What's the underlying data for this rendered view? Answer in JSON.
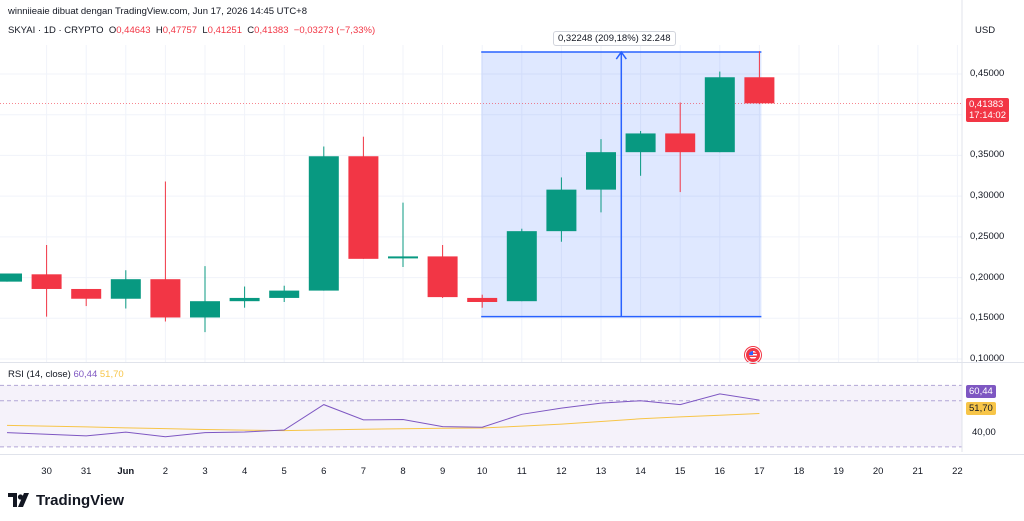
{
  "header": {
    "published": "winniieaie dibuat dengan TradingView.com, Jun 17, 2026 14:45 UTC+8",
    "symbol": "SKYAI · 1D · CRYPTO",
    "o_label": "O",
    "o_value": "0,44643",
    "h_label": "H",
    "h_value": "0,47757",
    "l_label": "L",
    "l_value": "0,41251",
    "c_label": "C",
    "c_value": "0,41383",
    "change": "−0,03273 (−7,33%)",
    "currency": "USD"
  },
  "measure": {
    "label": "0,32248 (209,18%) 32.248"
  },
  "price_tag": {
    "price": "0,41383",
    "countdown": "17:14:02"
  },
  "rsi": {
    "title": "RSI (14, close)",
    "rsi_value": "60,44",
    "ma_value": "51,70",
    "axis_label": "40,00"
  },
  "footer": {
    "brand": "TradingView"
  },
  "colors": {
    "up": "#089981",
    "down": "#f23645",
    "measure": "#2962ff",
    "rsi": "#7e57c2",
    "rsi_ma": "#f7c548"
  },
  "chart_data": [
    {
      "type": "candlestick",
      "title": "SKYAI · 1D · CRYPTO",
      "x_tick_labels": [
        "30",
        "31",
        "Jun",
        "2",
        "3",
        "4",
        "5",
        "6",
        "7",
        "8",
        "9",
        "10",
        "11",
        "12",
        "13",
        "14",
        "15",
        "16",
        "17",
        "18",
        "19",
        "20",
        "21",
        "22"
      ],
      "y_tick_labels": [
        "0,45000",
        "0,40000",
        "0,35000",
        "0,30000",
        "0,25000",
        "0,20000",
        "0,15000",
        "0,10000"
      ],
      "ylim": [
        0.1,
        0.45
      ],
      "candles": [
        {
          "x": "29",
          "o": 0.195,
          "h": 0.205,
          "l": 0.195,
          "c": 0.205
        },
        {
          "x": "30",
          "o": 0.204,
          "h": 0.24,
          "l": 0.152,
          "c": 0.186
        },
        {
          "x": "31",
          "o": 0.186,
          "h": 0.186,
          "l": 0.165,
          "c": 0.174
        },
        {
          "x": "Jun",
          "o": 0.174,
          "h": 0.209,
          "l": 0.162,
          "c": 0.198
        },
        {
          "x": "2",
          "o": 0.198,
          "h": 0.318,
          "l": 0.146,
          "c": 0.151
        },
        {
          "x": "3",
          "o": 0.151,
          "h": 0.214,
          "l": 0.133,
          "c": 0.171
        },
        {
          "x": "4",
          "o": 0.171,
          "h": 0.189,
          "l": 0.163,
          "c": 0.175
        },
        {
          "x": "5",
          "o": 0.175,
          "h": 0.19,
          "l": 0.17,
          "c": 0.184
        },
        {
          "x": "6",
          "o": 0.184,
          "h": 0.361,
          "l": 0.184,
          "c": 0.349
        },
        {
          "x": "7",
          "o": 0.349,
          "h": 0.373,
          "l": 0.223,
          "c": 0.223
        },
        {
          "x": "8",
          "o": 0.224,
          "h": 0.292,
          "l": 0.213,
          "c": 0.226
        },
        {
          "x": "9",
          "o": 0.226,
          "h": 0.24,
          "l": 0.175,
          "c": 0.176
        },
        {
          "x": "10",
          "o": 0.175,
          "h": 0.179,
          "l": 0.163,
          "c": 0.17
        },
        {
          "x": "11",
          "o": 0.171,
          "h": 0.26,
          "l": 0.171,
          "c": 0.257
        },
        {
          "x": "12",
          "o": 0.257,
          "h": 0.323,
          "l": 0.244,
          "c": 0.308
        },
        {
          "x": "13",
          "o": 0.308,
          "h": 0.37,
          "l": 0.28,
          "c": 0.354
        },
        {
          "x": "14",
          "o": 0.354,
          "h": 0.38,
          "l": 0.325,
          "c": 0.377
        },
        {
          "x": "15",
          "o": 0.377,
          "h": 0.415,
          "l": 0.305,
          "c": 0.354
        },
        {
          "x": "16",
          "o": 0.354,
          "h": 0.453,
          "l": 0.354,
          "c": 0.446
        },
        {
          "x": "17",
          "o": 0.446,
          "h": 0.478,
          "l": 0.413,
          "c": 0.414
        }
      ],
      "current_price": 0.41383,
      "measure_range": {
        "from_x": "10",
        "to_x": "17",
        "low": 0.152,
        "high": 0.477
      }
    },
    {
      "type": "line",
      "title": "RSI (14, close)",
      "y_tick_labels": [
        "40,00"
      ],
      "ylim": [
        28,
        80
      ],
      "bands": [
        70,
        60,
        30
      ],
      "categories": [
        "29",
        "30",
        "31",
        "Jun",
        "2",
        "3",
        "4",
        "5",
        "6",
        "7",
        "8",
        "9",
        "10",
        "11",
        "12",
        "13",
        "14",
        "15",
        "16",
        "17"
      ],
      "series": [
        {
          "name": "RSI",
          "values": [
            39.3,
            38.2,
            37.2,
            39.6,
            36.6,
            39.3,
            39.7,
            41.0,
            57.5,
            47.6,
            47.8,
            43.2,
            42.8,
            51.2,
            55.2,
            58.5,
            60.0,
            57.5,
            64.5,
            60.44
          ]
        },
        {
          "values": [
            44.0,
            43.5,
            43.0,
            42.4,
            41.9,
            41.3,
            40.9,
            40.6,
            41.1,
            41.5,
            41.8,
            42.1,
            42.3,
            43.5,
            44.8,
            46.5,
            48.3,
            49.5,
            50.6,
            51.7
          ]
        }
      ]
    }
  ]
}
